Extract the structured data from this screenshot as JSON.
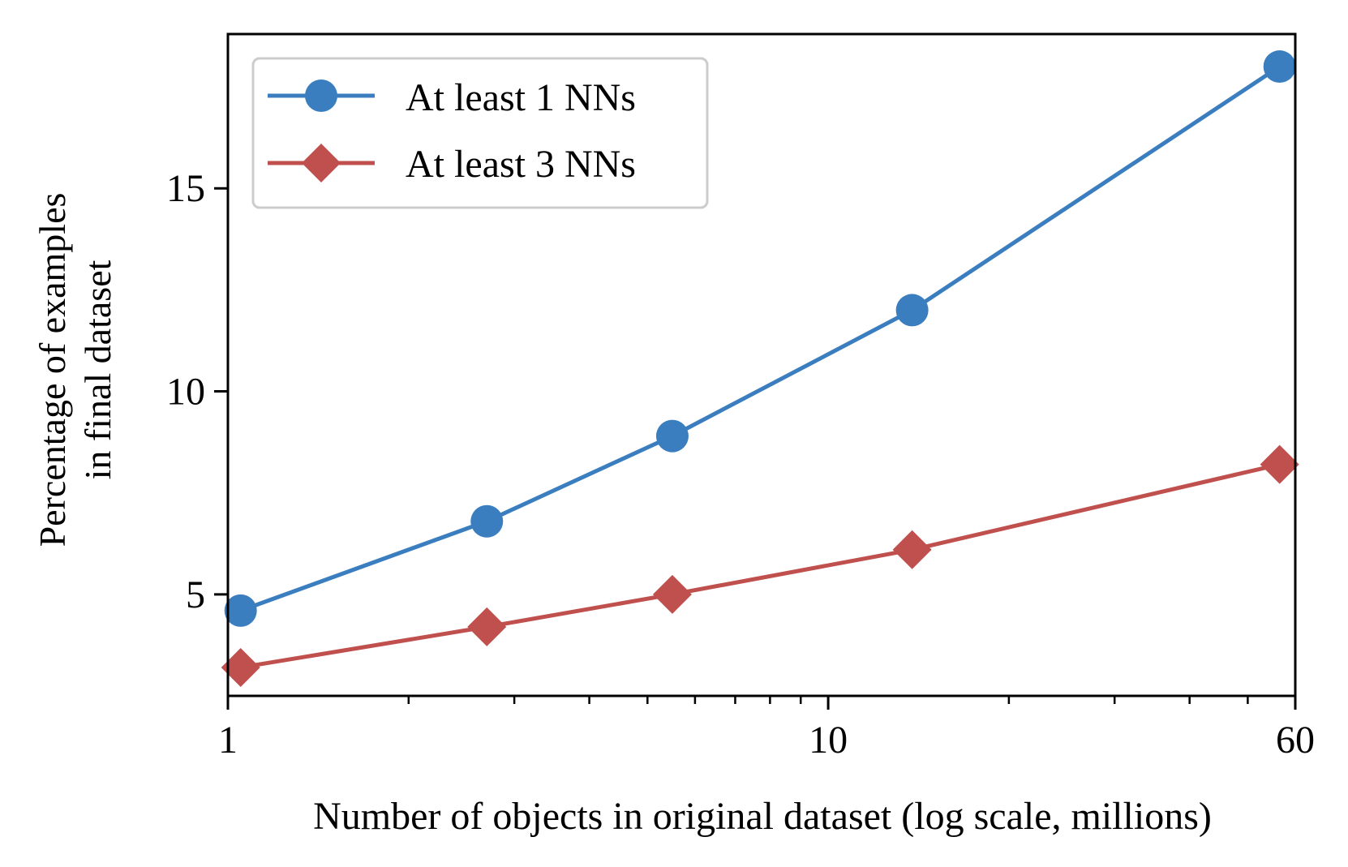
{
  "chart_data": {
    "type": "line",
    "title": "",
    "xlabel": "Number of objects in original dataset (log scale, millions)",
    "ylabel_lines": [
      "Percentage of examples",
      "in final dataset"
    ],
    "x_scale": "log",
    "xlim": [
      1,
      60
    ],
    "ylim": [
      2.5,
      18.8
    ],
    "x_ticks": [
      {
        "value": 1,
        "label": "1"
      },
      {
        "value": 10,
        "label": "10"
      },
      {
        "value": 60,
        "label": "60"
      }
    ],
    "x_minor_ticks": [
      2,
      3,
      4,
      5,
      6,
      7,
      8,
      9,
      20,
      30,
      40,
      50
    ],
    "y_ticks": [
      {
        "value": 5,
        "label": "5"
      },
      {
        "value": 10,
        "label": "10"
      },
      {
        "value": 15,
        "label": "15"
      }
    ],
    "grid": false,
    "legend_position": "top-left",
    "series": [
      {
        "name": "At least 1 NNs",
        "color": "#3a7ebf",
        "marker": "circle",
        "points": [
          {
            "x": 1.05,
            "y": 4.6
          },
          {
            "x": 2.7,
            "y": 6.8
          },
          {
            "x": 5.5,
            "y": 8.9
          },
          {
            "x": 13.8,
            "y": 12.0
          },
          {
            "x": 56.5,
            "y": 18.0
          }
        ]
      },
      {
        "name": "At least 3 NNs",
        "color": "#c0504d",
        "marker": "diamond",
        "points": [
          {
            "x": 1.05,
            "y": 3.2
          },
          {
            "x": 2.7,
            "y": 4.2
          },
          {
            "x": 5.5,
            "y": 5.0
          },
          {
            "x": 13.8,
            "y": 6.1
          },
          {
            "x": 56.5,
            "y": 8.2
          }
        ]
      }
    ]
  }
}
